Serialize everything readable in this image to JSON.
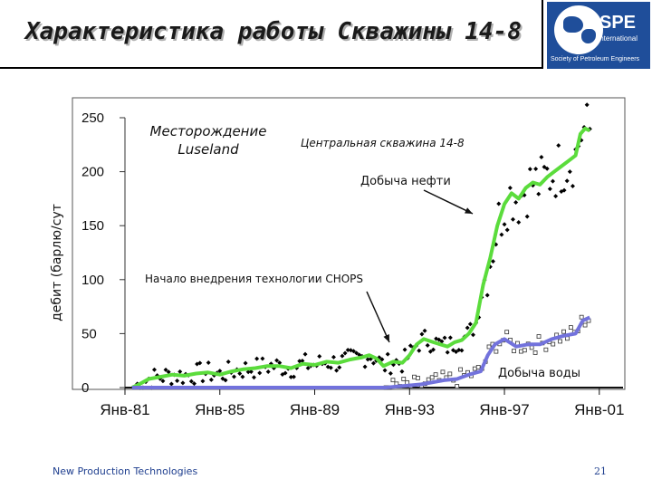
{
  "header": {
    "title": "Характеристика работы Скважины 14-8",
    "logo_text": "SPE",
    "logo_subtext": "International",
    "logo_caption": "Society of Petroleum Engineers"
  },
  "footer": {
    "left_text": "New Production Technologies",
    "page_number": "21"
  },
  "colors": {
    "oil": "#5bdc3c",
    "water": "#7272dc",
    "points": "#000000",
    "logo_bg": "#1f4e9a"
  },
  "chart_data": {
    "type": "line",
    "ylabel": "дебит (барлю/сут",
    "ylim": [
      0,
      250
    ],
    "yticks": [
      0,
      50,
      100,
      150,
      200,
      250
    ],
    "xlim": [
      1981,
      2002
    ],
    "xticks": [
      {
        "value": 1981,
        "label": "Янв-81"
      },
      {
        "value": 1985,
        "label": "Янв-85"
      },
      {
        "value": 1989,
        "label": "Янв-89"
      },
      {
        "value": 1993,
        "label": "Янв-93"
      },
      {
        "value": 1997,
        "label": "Янв-97"
      },
      {
        "value": 2001,
        "label": "Янв-01"
      }
    ],
    "annotations": {
      "field": "Месторождение Luseland",
      "central_well": "Центральная скважина 14-8",
      "oil_production": "Добыча нефти",
      "chops_start": "Начало внедрения технологии CHOPS",
      "water_production": "Добыча воды"
    },
    "series": [
      {
        "name": "Добыча нефти",
        "x": [
          1981.3,
          1981.6,
          1982.0,
          1982.5,
          1983.0,
          1983.5,
          1984.0,
          1984.5,
          1985.0,
          1985.5,
          1986.0,
          1986.5,
          1987.0,
          1987.5,
          1988.0,
          1988.5,
          1989.0,
          1989.5,
          1990.0,
          1990.5,
          1991.0,
          1991.3,
          1991.6,
          1991.9,
          1992.3,
          1992.7,
          1993.0,
          1993.3,
          1993.6,
          1994.0,
          1994.3,
          1994.6,
          1994.9,
          1995.2,
          1995.5,
          1995.8,
          1996.1,
          1996.4,
          1996.7,
          1997.0,
          1997.3,
          1997.6,
          1997.9,
          1998.2,
          1998.5,
          1998.8,
          1999.1,
          1999.4,
          1999.7,
          2000.0,
          2000.2,
          2000.4,
          2000.6
        ],
        "values": [
          0,
          3,
          8,
          10,
          12,
          11,
          13,
          14,
          12,
          15,
          17,
          18,
          20,
          20,
          18,
          22,
          21,
          24,
          23,
          26,
          28,
          30,
          27,
          20,
          24,
          23,
          30,
          40,
          45,
          42,
          40,
          38,
          42,
          44,
          50,
          60,
          95,
          120,
          150,
          170,
          180,
          175,
          185,
          190,
          188,
          195,
          200,
          205,
          210,
          215,
          235,
          240,
          238
        ]
      },
      {
        "name": "Добыча воды",
        "x": [
          1981.3,
          1982.0,
          1983.0,
          1984.0,
          1985.0,
          1986.0,
          1987.0,
          1988.0,
          1989.0,
          1990.0,
          1991.0,
          1992.0,
          1992.5,
          1993.0,
          1993.5,
          1994.0,
          1994.5,
          1995.0,
          1995.5,
          1996.0,
          1996.3,
          1996.6,
          1997.0,
          1997.5,
          1998.0,
          1998.5,
          1999.0,
          1999.5,
          2000.0,
          2000.3,
          2000.6
        ],
        "values": [
          0,
          0,
          0,
          0,
          0,
          0,
          0,
          0,
          0,
          0,
          0,
          0,
          1,
          2,
          3,
          5,
          7,
          8,
          12,
          15,
          30,
          40,
          45,
          38,
          40,
          40,
          45,
          48,
          50,
          62,
          65
        ]
      }
    ]
  }
}
